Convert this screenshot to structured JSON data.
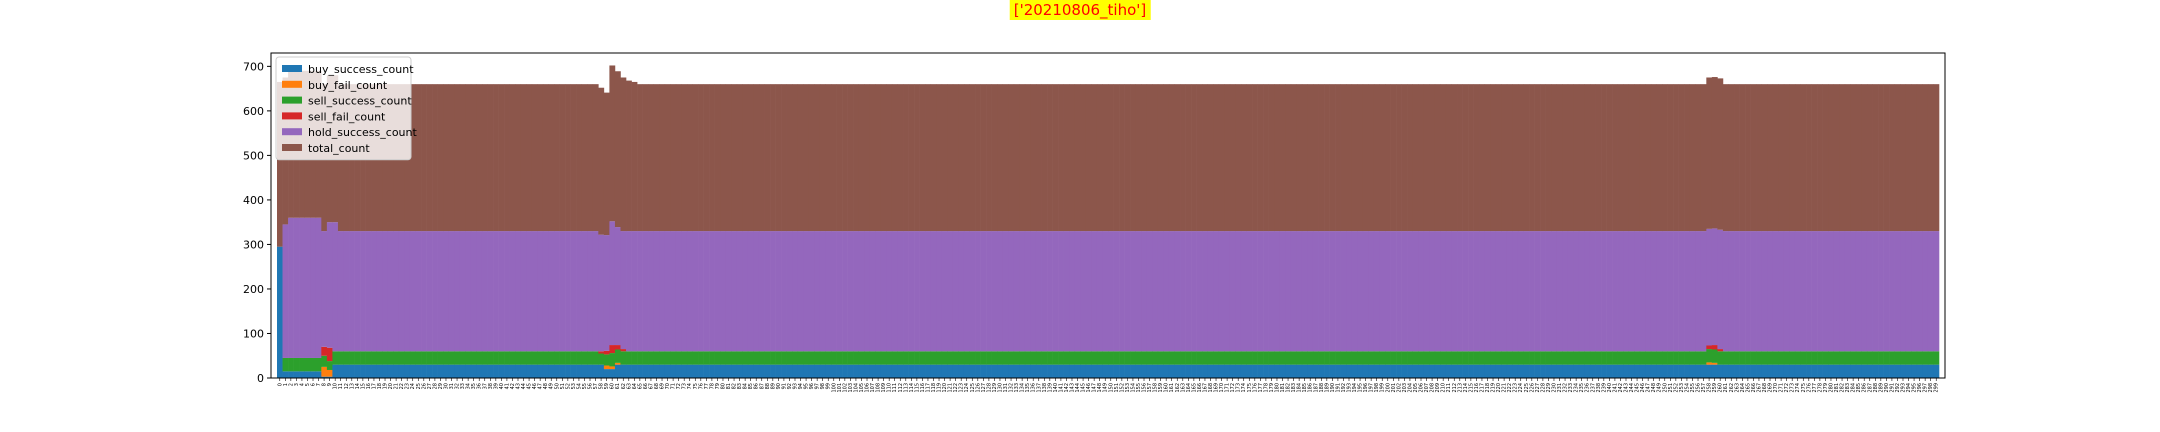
{
  "suptitle": "['20210806_tiho']",
  "chart_data": {
    "type": "bar",
    "stacked": true,
    "title": "",
    "xlabel": "",
    "ylabel": "",
    "ylim": [
      0,
      730
    ],
    "yticks": [
      0,
      100,
      200,
      300,
      400,
      500,
      600,
      700
    ],
    "legend_position": "top-left",
    "num_categories": 300,
    "series": [
      {
        "name": "buy_success_count",
        "color": "#1f77b4",
        "default": 30,
        "overrides": {
          "0": 295,
          "1": 15,
          "2": 15,
          "3": 15,
          "4": 15,
          "5": 15,
          "6": 15,
          "7": 15,
          "8": 3,
          "9": 3,
          "10": 30,
          "59": 20,
          "60": 20,
          "61": 30
        }
      },
      {
        "name": "buy_fail_count",
        "color": "#ff7f0e",
        "default": 0,
        "overrides": {
          "8": 22,
          "9": 15,
          "59": 8,
          "60": 6,
          "61": 4,
          "258": 5,
          "259": 4
        }
      },
      {
        "name": "sell_success_count",
        "color": "#2ca02c",
        "default": 30,
        "overrides": {
          "0": 0,
          "8": 25,
          "9": 20,
          "58": 25,
          "59": 25,
          "60": 30,
          "61": 30
        }
      },
      {
        "name": "sell_fail_count",
        "color": "#d62728",
        "default": 0,
        "overrides": {
          "8": 20,
          "9": 30,
          "58": 5,
          "59": 8,
          "60": 18,
          "61": 10,
          "62": 5,
          "258": 8,
          "259": 10,
          "260": 5
        }
      },
      {
        "name": "hold_success_count",
        "color": "#9467bd",
        "default": 270,
        "overrides": {
          "0": 0,
          "1": 300,
          "2": 315,
          "3": 315,
          "4": 315,
          "5": 315,
          "6": 315,
          "7": 315,
          "8": 260,
          "9": 282,
          "10": 290,
          "58": 262,
          "59": 260,
          "60": 278,
          "61": 265,
          "62": 265,
          "258": 262,
          "259": 262,
          "260": 268
        }
      },
      {
        "name": "total_count",
        "color": "#8c564b",
        "default": 330,
        "overrides": {
          "0": 370,
          "1": 330,
          "2": 330,
          "59": 320,
          "60": 350,
          "61": 350,
          "62": 345,
          "63": 338,
          "64": 335,
          "258": 340,
          "259": 340,
          "260": 340
        }
      }
    ]
  }
}
